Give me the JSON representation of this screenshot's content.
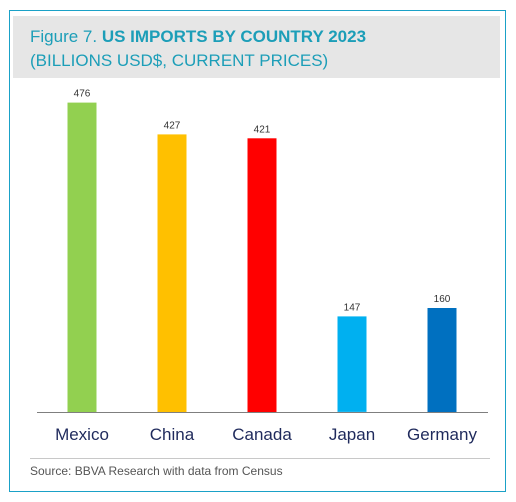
{
  "figure": {
    "prefix": "Figure 7.",
    "title": "US IMPORTS BY COUNTRY 2023",
    "subtitle": "(BILLIONS USD$, CURRENT PRICES)",
    "source": "Source: BBVA Research with data from Census"
  },
  "colors": {
    "accent": "#1c9eb8",
    "border": "#1aa1c7"
  },
  "chart_data": {
    "type": "bar",
    "title": "US IMPORTS BY COUNTRY 2023",
    "subtitle": "(BILLIONS USD$, CURRENT PRICES)",
    "categories": [
      "Mexico",
      "China",
      "Canada",
      "Japan",
      "Germany"
    ],
    "values": [
      476,
      427,
      421,
      147,
      160
    ],
    "colors": [
      "#92d050",
      "#ffc000",
      "#ff0000",
      "#00b0f0",
      "#0070c0"
    ],
    "data_labels": [
      "476",
      "427",
      "421",
      "147",
      "160"
    ],
    "xlabel": "",
    "ylabel": "",
    "ylim": [
      0,
      500
    ],
    "grid": false,
    "legend": "none",
    "y_axis_shown": false
  }
}
